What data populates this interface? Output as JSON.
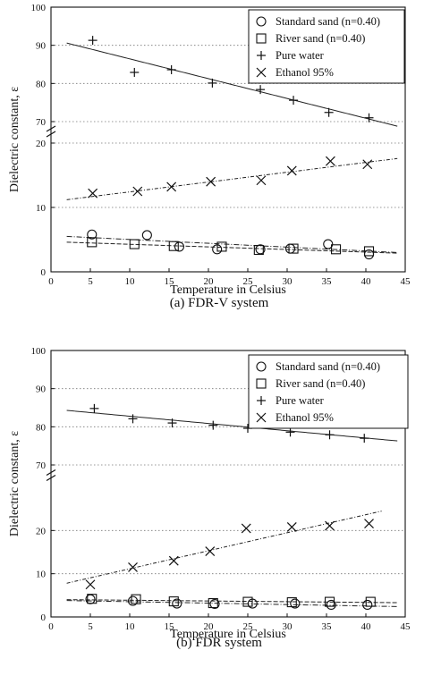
{
  "chart_data": [
    {
      "type": "scatter",
      "caption": "(a) FDR-V system",
      "xlabel": "Temperature in Celsius",
      "ylabel": "Dielectric constant, ε",
      "xlim": [
        0,
        45
      ],
      "x_ticks": [
        0,
        5,
        10,
        15,
        20,
        25,
        30,
        35,
        40,
        45
      ],
      "y_broken_axis": {
        "lower": {
          "ylim": [
            0,
            20
          ],
          "ticks": [
            0,
            10,
            20
          ]
        },
        "upper": {
          "ylim": [
            70,
            100
          ],
          "ticks": [
            70,
            80,
            90,
            100
          ]
        }
      },
      "grid": "dotted horizontal",
      "legend_position": "top-right",
      "series": [
        {
          "name": "Standard sand (n=0.40)",
          "marker": "circle",
          "x": [
            5.2,
            12.2,
            16.3,
            21.1,
            26.6,
            30.4,
            35.2,
            40.4
          ],
          "y": [
            5.8,
            5.7,
            3.9,
            3.5,
            3.5,
            3.6,
            4.3,
            2.7
          ],
          "fit": [
            [
              2,
              5.5
            ],
            [
              44,
              3.0
            ]
          ]
        },
        {
          "name": "River sand (n=0.40)",
          "marker": "square",
          "x": [
            5.2,
            10.6,
            15.6,
            21.7,
            26.4,
            30.8,
            36.2,
            40.4
          ],
          "y": [
            4.6,
            4.3,
            4.0,
            3.9,
            3.4,
            3.6,
            3.5,
            3.2
          ],
          "fit": [
            [
              2,
              4.6
            ],
            [
              44,
              2.9
            ]
          ]
        },
        {
          "name": "Pure water",
          "marker": "plus",
          "x": [
            5.3,
            10.6,
            15.3,
            20.5,
            26.6,
            30.8,
            35.3,
            40.4
          ],
          "y": [
            91.3,
            82.9,
            83.6,
            80.1,
            78.4,
            75.6,
            72.4,
            71.0
          ],
          "fit": [
            [
              2,
              90.6
            ],
            [
              44,
              68.8
            ]
          ]
        },
        {
          "name": "Ethanol 95%",
          "marker": "x",
          "x": [
            5.3,
            11.0,
            15.3,
            20.3,
            26.7,
            30.6,
            35.5,
            40.2
          ],
          "y": [
            12.2,
            12.5,
            13.2,
            14.0,
            14.2,
            15.7,
            17.2,
            16.7
          ],
          "fit": [
            [
              2,
              11.2
            ],
            [
              44,
              17.6
            ]
          ]
        }
      ]
    },
    {
      "type": "scatter",
      "caption": "(b) FDR system",
      "xlabel": "Temperature in Celsius",
      "ylabel": "Dielectric constant, ε",
      "xlim": [
        0,
        45
      ],
      "x_ticks": [
        0,
        5,
        10,
        15,
        20,
        25,
        30,
        35,
        40,
        45
      ],
      "y_broken_axis": {
        "lower": {
          "ylim": [
            0,
            30
          ],
          "ticks": [
            0,
            10,
            20
          ]
        },
        "upper": {
          "ylim": [
            70,
            100
          ],
          "ticks": [
            70,
            80,
            90,
            100
          ]
        }
      },
      "grid": "dotted horizontal",
      "legend_position": "top-right",
      "series": [
        {
          "name": "Standard sand (n=0.40)",
          "marker": "circle",
          "x": [
            5.0,
            10.4,
            16.0,
            20.8,
            25.6,
            31.0,
            35.6,
            40.2
          ],
          "y": [
            4.1,
            3.7,
            3.1,
            3.0,
            3.1,
            3.1,
            2.8,
            2.8
          ],
          "fit": [
            [
              2,
              3.8
            ],
            [
              44,
              2.4
            ]
          ]
        },
        {
          "name": "River sand (n=0.40)",
          "marker": "square",
          "x": [
            5.2,
            10.8,
            15.6,
            20.6,
            25.0,
            30.6,
            35.4,
            40.6
          ],
          "y": [
            4.2,
            4.1,
            3.6,
            3.2,
            3.5,
            3.4,
            3.5,
            3.5
          ],
          "fit": [
            [
              2,
              4.0
            ],
            [
              44,
              3.3
            ]
          ]
        },
        {
          "name": "Pure water",
          "marker": "plus",
          "x": [
            5.5,
            10.4,
            15.4,
            20.6,
            25.0,
            30.4,
            35.4,
            39.8
          ],
          "y": [
            84.8,
            82.1,
            81.0,
            80.4,
            79.6,
            78.6,
            77.9,
            77.0
          ],
          "fit": [
            [
              2,
              84.3
            ],
            [
              44,
              76.3
            ]
          ]
        },
        {
          "name": "Ethanol 95%",
          "marker": "x",
          "x": [
            5.0,
            10.4,
            15.6,
            20.2,
            24.8,
            30.6,
            35.4,
            40.4
          ],
          "y": [
            7.5,
            11.5,
            13.0,
            15.2,
            20.5,
            20.8,
            21.1,
            21.6
          ],
          "fit": [
            [
              2,
              7.8
            ],
            [
              42,
              24.5
            ]
          ]
        }
      ]
    }
  ]
}
